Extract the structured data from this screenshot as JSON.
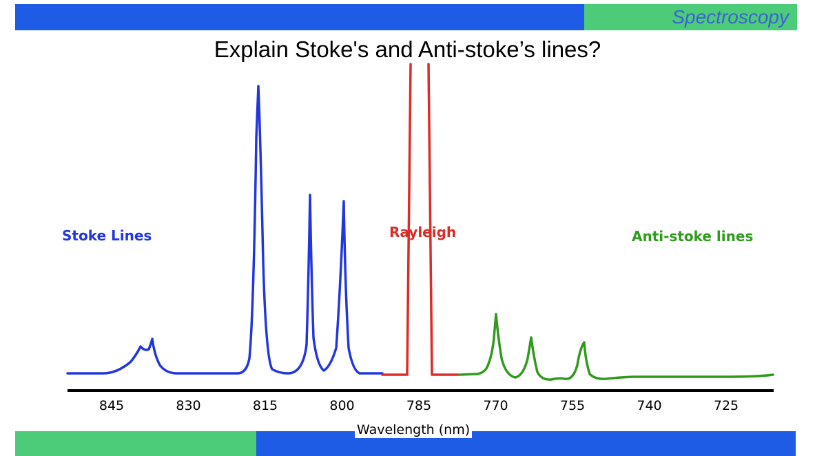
{
  "header": {
    "section_label": "Spectroscopy",
    "title": "Explain Stoke's and Anti-stoke’s lines?"
  },
  "regions": {
    "stoke": "Stoke Lines",
    "rayleigh": "Rayleigh",
    "antistoke": "Anti-stoke lines"
  },
  "axis": {
    "title": "Wavelength (nm)",
    "ticks": [
      "845",
      "830",
      "815",
      "800",
      "785",
      "770",
      "755",
      "740",
      "725"
    ]
  },
  "colors": {
    "bar_blue": "#1f5ce6",
    "bar_green": "#4ccb78",
    "section_label": "#3b63d6",
    "stoke": "#2236e0",
    "rayleigh": "#de2b25",
    "antistoke": "#2f9a1c"
  }
}
